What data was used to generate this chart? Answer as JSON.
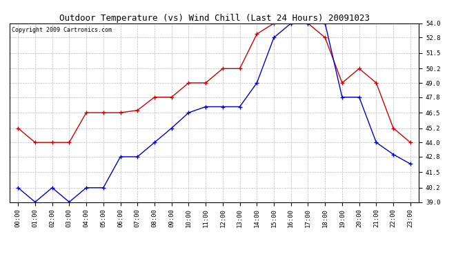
{
  "title": "Outdoor Temperature (vs) Wind Chill (Last 24 Hours) 20091023",
  "copyright": "Copyright 2009 Cartronics.com",
  "hours": [
    "00:00",
    "01:00",
    "02:00",
    "03:00",
    "04:00",
    "05:00",
    "06:00",
    "07:00",
    "08:00",
    "09:00",
    "10:00",
    "11:00",
    "12:00",
    "13:00",
    "14:00",
    "15:00",
    "16:00",
    "17:00",
    "18:00",
    "19:00",
    "20:00",
    "21:00",
    "22:00",
    "23:00"
  ],
  "temp": [
    45.2,
    44.0,
    44.0,
    44.0,
    46.5,
    46.5,
    46.5,
    46.7,
    47.8,
    47.8,
    49.0,
    49.0,
    50.2,
    50.2,
    53.1,
    54.0,
    54.0,
    54.0,
    52.8,
    49.0,
    50.2,
    49.0,
    45.2,
    44.0
  ],
  "wind_chill": [
    40.2,
    39.0,
    40.2,
    39.0,
    40.2,
    40.2,
    42.8,
    42.8,
    44.0,
    45.2,
    46.5,
    47.0,
    47.0,
    47.0,
    49.0,
    52.8,
    54.0,
    54.0,
    54.0,
    47.8,
    47.8,
    44.0,
    43.0,
    42.2
  ],
  "ylim": [
    39.0,
    54.0
  ],
  "yticks": [
    39.0,
    40.2,
    41.5,
    42.8,
    44.0,
    45.2,
    46.5,
    47.8,
    49.0,
    50.2,
    51.5,
    52.8,
    54.0
  ],
  "temp_color": "#cc0000",
  "wind_chill_color": "#0000cc",
  "bg_color": "#ffffff",
  "grid_color": "#bbbbbb",
  "title_fontsize": 9,
  "copyright_fontsize": 6,
  "tick_fontsize": 6.5,
  "marker": "+"
}
